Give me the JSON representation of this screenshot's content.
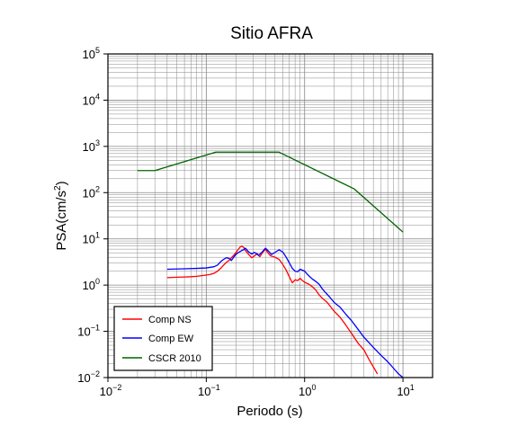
{
  "chart_data": {
    "type": "line",
    "title": "Sitio AFRA",
    "xlabel": "Periodo (s)",
    "ylabel": {
      "base": "PSA(cm/s",
      "sup": "2",
      "close": ")"
    },
    "xscale": "log",
    "yscale": "log",
    "xlim": [
      0.01,
      20
    ],
    "ylim": [
      0.01,
      100000
    ],
    "grid": true,
    "legend_position": "bottom-left",
    "x_ticks": [
      {
        "base": "10",
        "exp": "−2",
        "value": 0.01
      },
      {
        "base": "10",
        "exp": "−1",
        "value": 0.1
      },
      {
        "base": "10",
        "exp": "0",
        "value": 1
      },
      {
        "base": "10",
        "exp": "1",
        "value": 10
      }
    ],
    "y_ticks": [
      {
        "base": "10",
        "exp": "−2",
        "value": 0.01
      },
      {
        "base": "10",
        "exp": "−1",
        "value": 0.1
      },
      {
        "base": "10",
        "exp": "0",
        "value": 1
      },
      {
        "base": "10",
        "exp": "1",
        "value": 10
      },
      {
        "base": "10",
        "exp": "2",
        "value": 100
      },
      {
        "base": "10",
        "exp": "3",
        "value": 1000
      },
      {
        "base": "10",
        "exp": "4",
        "value": 10000
      },
      {
        "base": "10",
        "exp": "5",
        "value": 100000
      }
    ],
    "series": [
      {
        "name": "Comp NS",
        "color": "#ff0000",
        "points": [
          [
            0.04,
            1.45
          ],
          [
            0.05,
            1.48
          ],
          [
            0.06,
            1.5
          ],
          [
            0.07,
            1.52
          ],
          [
            0.08,
            1.55
          ],
          [
            0.09,
            1.6
          ],
          [
            0.1,
            1.65
          ],
          [
            0.11,
            1.7
          ],
          [
            0.12,
            1.8
          ],
          [
            0.13,
            2.0
          ],
          [
            0.14,
            2.3
          ],
          [
            0.15,
            2.7
          ],
          [
            0.16,
            3.1
          ],
          [
            0.17,
            3.4
          ],
          [
            0.18,
            3.9
          ],
          [
            0.19,
            4.4
          ],
          [
            0.2,
            5.0
          ],
          [
            0.21,
            5.8
          ],
          [
            0.22,
            6.6
          ],
          [
            0.23,
            7.0
          ],
          [
            0.24,
            6.5
          ],
          [
            0.25,
            5.6
          ],
          [
            0.27,
            4.6
          ],
          [
            0.29,
            3.9
          ],
          [
            0.31,
            4.3
          ],
          [
            0.33,
            4.8
          ],
          [
            0.35,
            4.1
          ],
          [
            0.37,
            4.9
          ],
          [
            0.4,
            6.0
          ],
          [
            0.42,
            5.1
          ],
          [
            0.45,
            4.3
          ],
          [
            0.5,
            4.0
          ],
          [
            0.55,
            3.6
          ],
          [
            0.6,
            2.8
          ],
          [
            0.65,
            2.1
          ],
          [
            0.7,
            1.5
          ],
          [
            0.75,
            1.12
          ],
          [
            0.8,
            1.3
          ],
          [
            0.85,
            1.25
          ],
          [
            0.9,
            1.4
          ],
          [
            0.95,
            1.25
          ],
          [
            1.0,
            1.15
          ],
          [
            1.1,
            1.05
          ],
          [
            1.2,
            0.92
          ],
          [
            1.3,
            0.78
          ],
          [
            1.4,
            0.62
          ],
          [
            1.5,
            0.53
          ],
          [
            1.7,
            0.42
          ],
          [
            2.0,
            0.27
          ],
          [
            2.3,
            0.2
          ],
          [
            2.6,
            0.14
          ],
          [
            3.0,
            0.09
          ],
          [
            3.5,
            0.055
          ],
          [
            4.0,
            0.04
          ],
          [
            4.5,
            0.025
          ],
          [
            5.0,
            0.017
          ],
          [
            5.5,
            0.012
          ]
        ]
      },
      {
        "name": "Comp EW",
        "color": "#0000ff",
        "points": [
          [
            0.04,
            2.2
          ],
          [
            0.06,
            2.25
          ],
          [
            0.08,
            2.3
          ],
          [
            0.1,
            2.35
          ],
          [
            0.12,
            2.5
          ],
          [
            0.13,
            2.7
          ],
          [
            0.14,
            3.2
          ],
          [
            0.15,
            3.6
          ],
          [
            0.16,
            3.9
          ],
          [
            0.17,
            3.8
          ],
          [
            0.18,
            3.4
          ],
          [
            0.19,
            4.0
          ],
          [
            0.2,
            4.6
          ],
          [
            0.21,
            5.0
          ],
          [
            0.22,
            5.3
          ],
          [
            0.23,
            5.6
          ],
          [
            0.24,
            5.8
          ],
          [
            0.25,
            6.3
          ],
          [
            0.27,
            5.2
          ],
          [
            0.29,
            4.7
          ],
          [
            0.31,
            5.1
          ],
          [
            0.34,
            4.4
          ],
          [
            0.37,
            5.2
          ],
          [
            0.4,
            6.3
          ],
          [
            0.43,
            5.4
          ],
          [
            0.46,
            4.6
          ],
          [
            0.5,
            5.1
          ],
          [
            0.55,
            5.8
          ],
          [
            0.6,
            5.2
          ],
          [
            0.65,
            4.0
          ],
          [
            0.7,
            3.0
          ],
          [
            0.75,
            2.3
          ],
          [
            0.8,
            2.0
          ],
          [
            0.85,
            1.95
          ],
          [
            0.9,
            2.2
          ],
          [
            1.0,
            2.0
          ],
          [
            1.1,
            1.6
          ],
          [
            1.2,
            1.35
          ],
          [
            1.3,
            1.2
          ],
          [
            1.4,
            1.05
          ],
          [
            1.5,
            0.85
          ],
          [
            1.6,
            0.72
          ],
          [
            1.8,
            0.55
          ],
          [
            2.0,
            0.42
          ],
          [
            2.3,
            0.33
          ],
          [
            2.6,
            0.24
          ],
          [
            3.0,
            0.17
          ],
          [
            3.5,
            0.11
          ],
          [
            4.0,
            0.075
          ],
          [
            5.0,
            0.045
          ],
          [
            6.0,
            0.03
          ],
          [
            7.0,
            0.022
          ],
          [
            8.0,
            0.016
          ],
          [
            9.0,
            0.012
          ],
          [
            10.0,
            0.01
          ]
        ]
      },
      {
        "name": "CSCR 2010",
        "color": "#006400",
        "points": [
          [
            0.02,
            300
          ],
          [
            0.03,
            300
          ],
          [
            0.125,
            750
          ],
          [
            0.55,
            750
          ],
          [
            3.2,
            120
          ],
          [
            10.0,
            14
          ]
        ]
      }
    ]
  }
}
